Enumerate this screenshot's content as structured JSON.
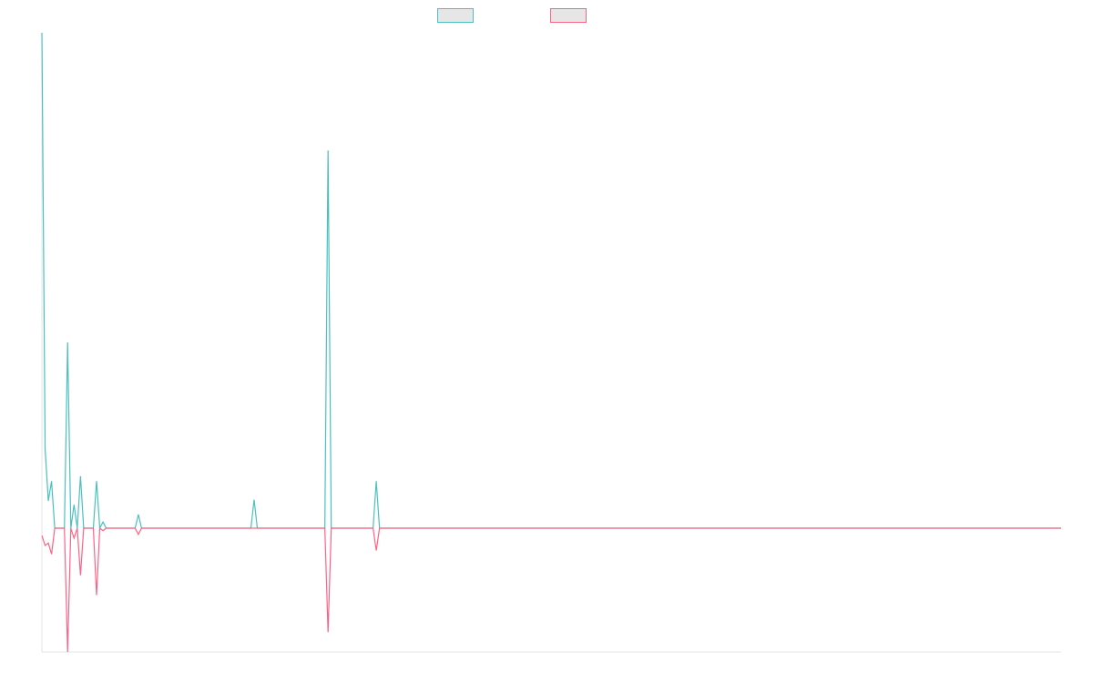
{
  "chart_data": {
    "type": "line",
    "title": "",
    "xlabel": "",
    "ylabel": "",
    "x_count": 318,
    "ylim": [
      -100,
      400
    ],
    "grid": false,
    "legend_position": "top-center",
    "series": [
      {
        "color": "#4bc0c0",
        "points": [
          [
            0,
            400
          ],
          [
            1,
            64
          ],
          [
            2,
            22
          ],
          [
            3,
            38
          ],
          [
            4,
            0
          ],
          [
            7,
            0
          ],
          [
            8,
            150
          ],
          [
            9,
            0
          ],
          [
            10,
            19
          ],
          [
            11,
            0
          ],
          [
            12,
            42
          ],
          [
            13,
            0
          ],
          [
            16,
            0
          ],
          [
            17,
            38
          ],
          [
            18,
            0
          ],
          [
            19,
            5
          ],
          [
            20,
            0
          ],
          [
            29,
            0
          ],
          [
            30,
            11
          ],
          [
            31,
            0
          ],
          [
            65,
            0
          ],
          [
            66,
            23
          ],
          [
            67,
            0
          ],
          [
            88,
            0
          ],
          [
            89,
            305
          ],
          [
            90,
            0
          ],
          [
            103,
            0
          ],
          [
            104,
            38
          ],
          [
            105,
            0
          ],
          [
            317,
            0
          ]
        ]
      },
      {
        "color": "#ff6384",
        "points": [
          [
            0,
            -6
          ],
          [
            1,
            -14
          ],
          [
            2,
            -12
          ],
          [
            3,
            -21
          ],
          [
            4,
            0
          ],
          [
            7,
            0
          ],
          [
            8,
            -100
          ],
          [
            9,
            0
          ],
          [
            10,
            -8
          ],
          [
            11,
            0
          ],
          [
            12,
            -38
          ],
          [
            13,
            0
          ],
          [
            16,
            0
          ],
          [
            17,
            -54
          ],
          [
            18,
            0
          ],
          [
            19,
            -2
          ],
          [
            20,
            0
          ],
          [
            29,
            0
          ],
          [
            30,
            -5
          ],
          [
            31,
            0
          ],
          [
            88,
            0
          ],
          [
            89,
            -84
          ],
          [
            90,
            0
          ],
          [
            103,
            0
          ],
          [
            104,
            -18
          ],
          [
            105,
            0
          ],
          [
            317,
            0
          ]
        ]
      }
    ]
  }
}
